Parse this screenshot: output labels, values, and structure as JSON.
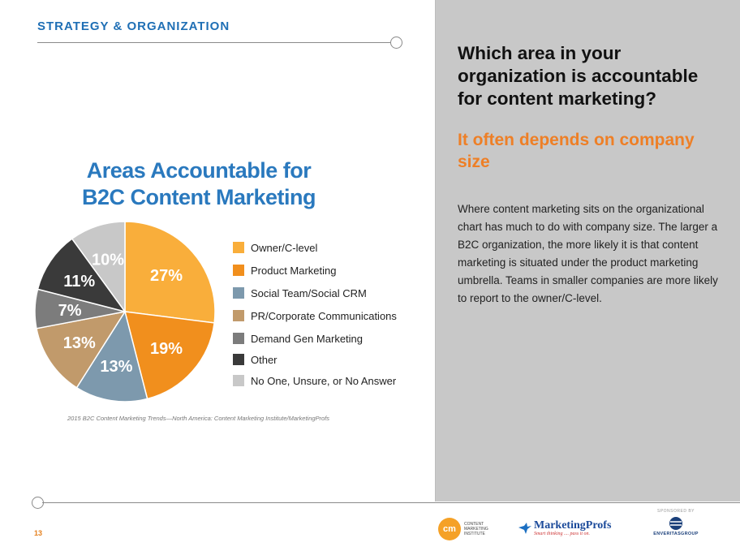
{
  "header": {
    "section_title": "STRATEGY & ORGANIZATION"
  },
  "chart_data": {
    "type": "pie",
    "title_lines": [
      "Areas Accountable for",
      "B2C Content Marketing"
    ],
    "slices": [
      {
        "label": "Owner/C-level",
        "value": 27,
        "display": "27%",
        "color": "#f9ae3b"
      },
      {
        "label": "Product Marketing",
        "value": 19,
        "display": "19%",
        "color": "#f18f1d"
      },
      {
        "label": "Social Team/Social CRM",
        "value": 13,
        "display": "13%",
        "color": "#7d99ad"
      },
      {
        "label": "PR/Corporate Communications",
        "value": 13,
        "display": "13%",
        "color": "#c19a6b"
      },
      {
        "label": "Demand Gen Marketing",
        "value": 7,
        "display": "7%",
        "color": "#7c7c7c"
      },
      {
        "label": "Other",
        "value": 11,
        "display": "11%",
        "color": "#3a3a3a"
      },
      {
        "label": "No One, Unsure, or No Answer",
        "value": 10,
        "display": "10%",
        "color": "#c8c8c8"
      }
    ],
    "legend_position": "right"
  },
  "source_note": "2015 B2C Content Marketing Trends—North America: Content Marketing Institute/MarketingProfs",
  "page_number": "13",
  "right_panel": {
    "question": "Which area in your organization is accountable for content marketing?",
    "subhead": "It often depends on company size",
    "body": "Where content marketing sits on the organizational chart has much to do with company size. The larger a B2C organization, the more likely it is that content marketing is situated under the product marketing umbrella. Teams in smaller companies are more likely to report to the owner/C-level."
  },
  "footer": {
    "cmi_badge": "cm",
    "cmi_words": [
      "CONTENT",
      "MARKETING",
      "INSTITUTE"
    ],
    "mp_name": "MarketingProfs",
    "mp_tagline": "Smart thinking .... pass it on.",
    "sponsored_by": "SPONSORED BY",
    "sponsor_name": "ENVERITASGROUP"
  }
}
